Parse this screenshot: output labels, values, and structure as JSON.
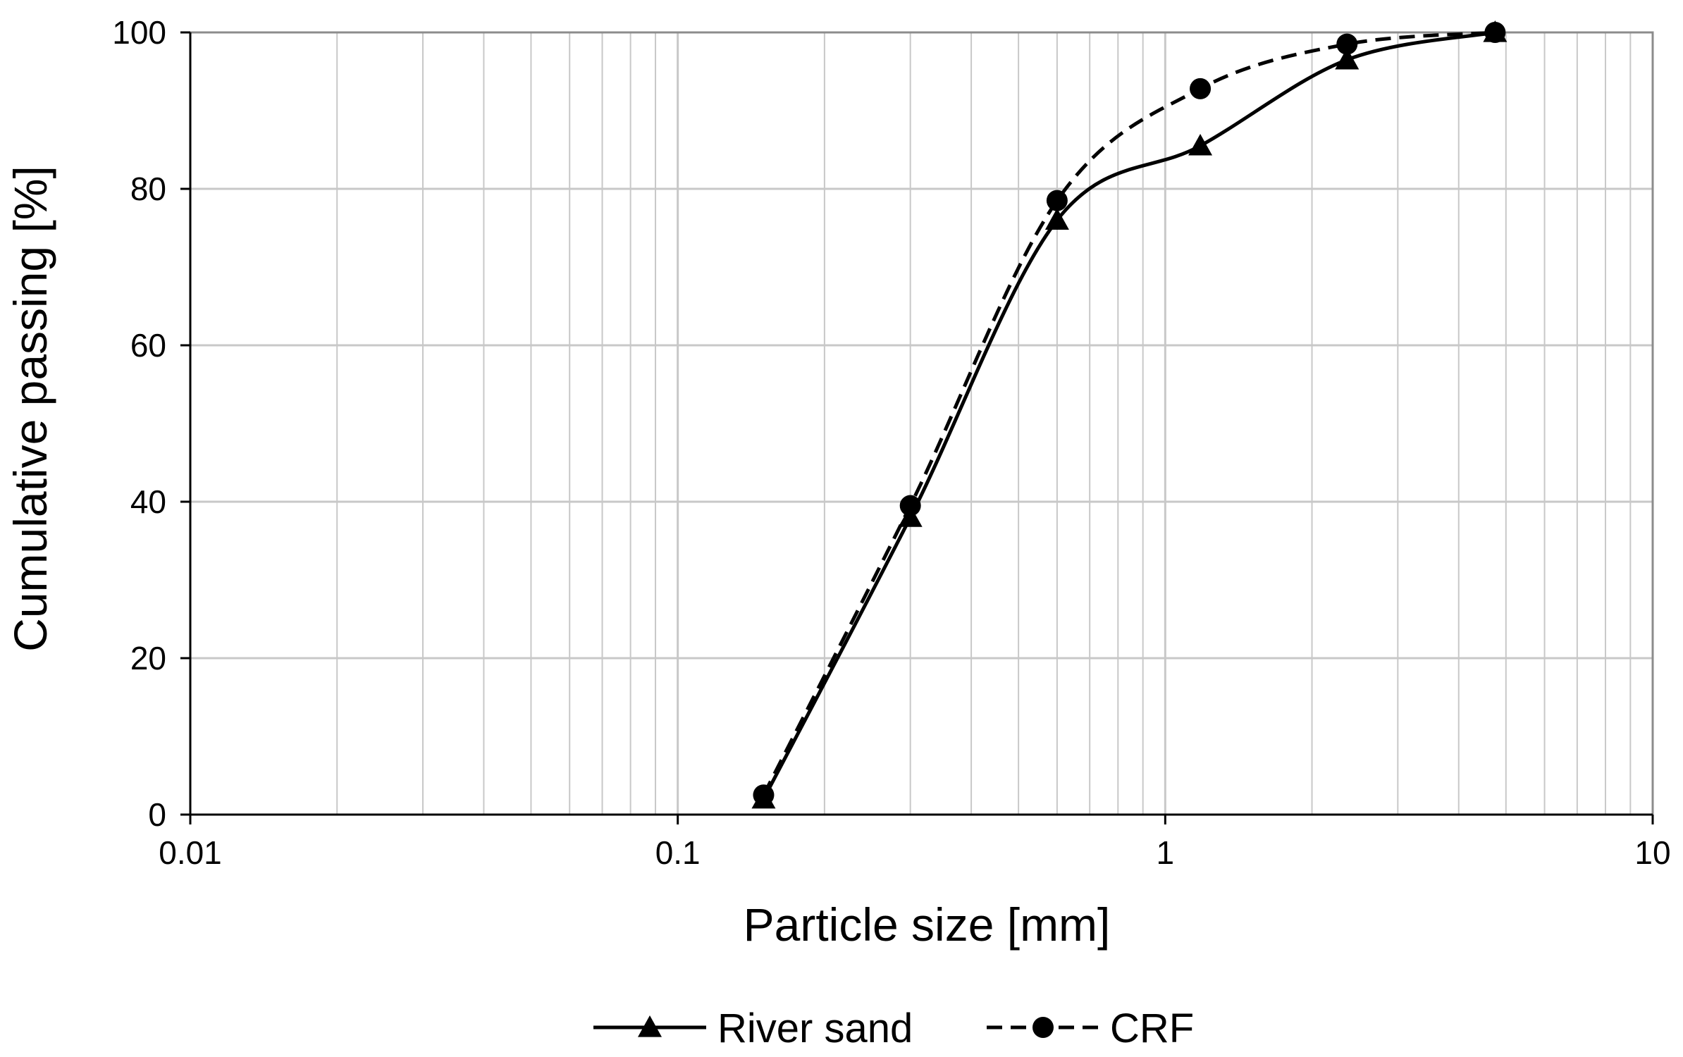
{
  "chart_data": {
    "type": "line",
    "title": "",
    "xlabel": "Particle size [mm]",
    "ylabel": "Cumulative passing [%]",
    "x_scale": "log",
    "xlim": [
      0.01,
      10
    ],
    "ylim": [
      0,
      100
    ],
    "x_ticks": [
      0.01,
      0.1,
      1,
      10
    ],
    "x_tick_labels": [
      "0.01",
      "0.1",
      "1",
      "10"
    ],
    "y_ticks": [
      0,
      20,
      40,
      60,
      80,
      100
    ],
    "y_tick_labels": [
      "0",
      "20",
      "40",
      "60",
      "80",
      "100"
    ],
    "grid": true,
    "legend_position": "bottom",
    "series": [
      {
        "name": "River sand",
        "marker": "triangle",
        "line_style": "solid",
        "color": "#000000",
        "x": [
          0.15,
          0.3,
          0.6,
          1.18,
          2.36,
          4.75
        ],
        "y": [
          2,
          38,
          76,
          85.5,
          96.5,
          100
        ]
      },
      {
        "name": "CRF",
        "marker": "circle",
        "line_style": "dashed",
        "color": "#000000",
        "x": [
          0.15,
          0.3,
          0.6,
          1.18,
          2.36,
          4.75
        ],
        "y": [
          2.5,
          39.5,
          78.5,
          92.8,
          98.5,
          100
        ]
      }
    ]
  }
}
